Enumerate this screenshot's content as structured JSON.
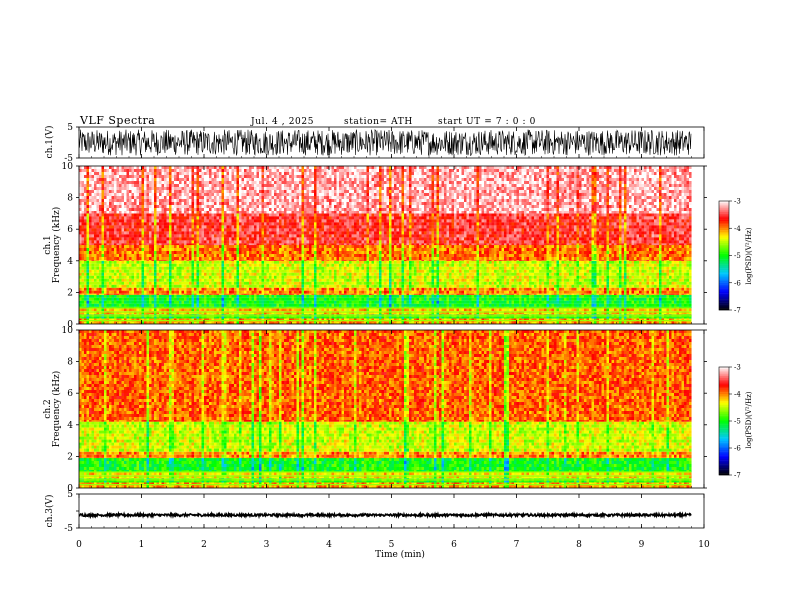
{
  "header": {
    "title": "VLF  Spectra",
    "date": "Jul.  4  , 2025",
    "station": "station= ATH",
    "start_ut": "start  UT  =    7  : 0   : 0"
  },
  "colors": {
    "background": "#ffffff",
    "axis": "#000000",
    "colormap": [
      "#000000",
      "#0000ff",
      "#00c8ff",
      "#00ff00",
      "#ffff00",
      "#ff0000",
      "#ffffff"
    ]
  },
  "chart_data": [
    {
      "type": "line",
      "id": "ch1-waveform",
      "ylabel": "ch.1(V)",
      "ylim": [
        -5,
        5
      ],
      "yticks": [
        5,
        -5
      ],
      "xlim": [
        0,
        10
      ],
      "description_of_series": "noise, amplitude about ±4 V"
    },
    {
      "type": "heatmap",
      "id": "ch1-spectrogram",
      "ylabel_line1": "ch.1",
      "ylabel_line2": "Frequency  (kHz)",
      "ylim": [
        0,
        10
      ],
      "yticks": [
        0,
        2,
        4,
        6,
        8,
        10
      ],
      "xlim": [
        0,
        10
      ],
      "colorbar": {
        "label": "log(PSD)(V²/Hz)",
        "range": [
          -7,
          -3
        ],
        "ticks": [
          "-3",
          "-4",
          "-5",
          "-6",
          "-7"
        ]
      },
      "bands_kHz": [
        {
          "from": 0,
          "to": 0.35,
          "level": -4.1
        },
        {
          "from": 0.35,
          "to": 0.6,
          "level": -4.9
        },
        {
          "from": 0.6,
          "to": 1.0,
          "level": -4.2
        },
        {
          "from": 1.0,
          "to": 1.85,
          "level": -5.0
        },
        {
          "from": 1.85,
          "to": 2.3,
          "level": -4.0
        },
        {
          "from": 2.3,
          "to": 4.0,
          "level": -4.45
        },
        {
          "from": 4.0,
          "to": 5.0,
          "level": -3.95
        },
        {
          "from": 5.0,
          "to": 7.0,
          "level": -3.55
        },
        {
          "from": 7.0,
          "to": 10.0,
          "level": -3.2
        }
      ]
    },
    {
      "type": "heatmap",
      "id": "ch2-spectrogram",
      "ylabel_line1": "ch.2",
      "ylabel_line2": "Frequency  (kHz)",
      "ylim": [
        0,
        10
      ],
      "yticks": [
        0,
        2,
        4,
        6,
        8,
        10
      ],
      "xlim": [
        0,
        10
      ],
      "colorbar": {
        "label": "log(PSD)(V²/Hz)",
        "range": [
          -7,
          -3
        ],
        "ticks": [
          "-3",
          "-4",
          "-5",
          "-6",
          "-7"
        ]
      },
      "bands_kHz": [
        {
          "from": 0,
          "to": 0.35,
          "level": -4.1
        },
        {
          "from": 0.35,
          "to": 0.6,
          "level": -4.9
        },
        {
          "from": 0.6,
          "to": 1.0,
          "level": -4.3
        },
        {
          "from": 1.0,
          "to": 1.9,
          "level": -5.0
        },
        {
          "from": 1.9,
          "to": 2.3,
          "level": -4.0
        },
        {
          "from": 2.3,
          "to": 4.2,
          "level": -4.45
        },
        {
          "from": 4.2,
          "to": 10.0,
          "level": -3.9
        }
      ]
    },
    {
      "type": "line",
      "id": "ch3-waveform",
      "ylabel": "ch.3(V)",
      "ylim": [
        -5,
        5
      ],
      "yticks": [
        5,
        0,
        -5
      ],
      "ytick_labels": [
        "5",
        "",
        "-5"
      ],
      "xlim": [
        0,
        10
      ],
      "xlabel": "Time  (min)",
      "xticks": [
        0,
        1,
        2,
        3,
        4,
        5,
        6,
        7,
        8,
        9,
        10
      ],
      "description_of_series": "flat near -1.2 V, small amplitude"
    }
  ]
}
